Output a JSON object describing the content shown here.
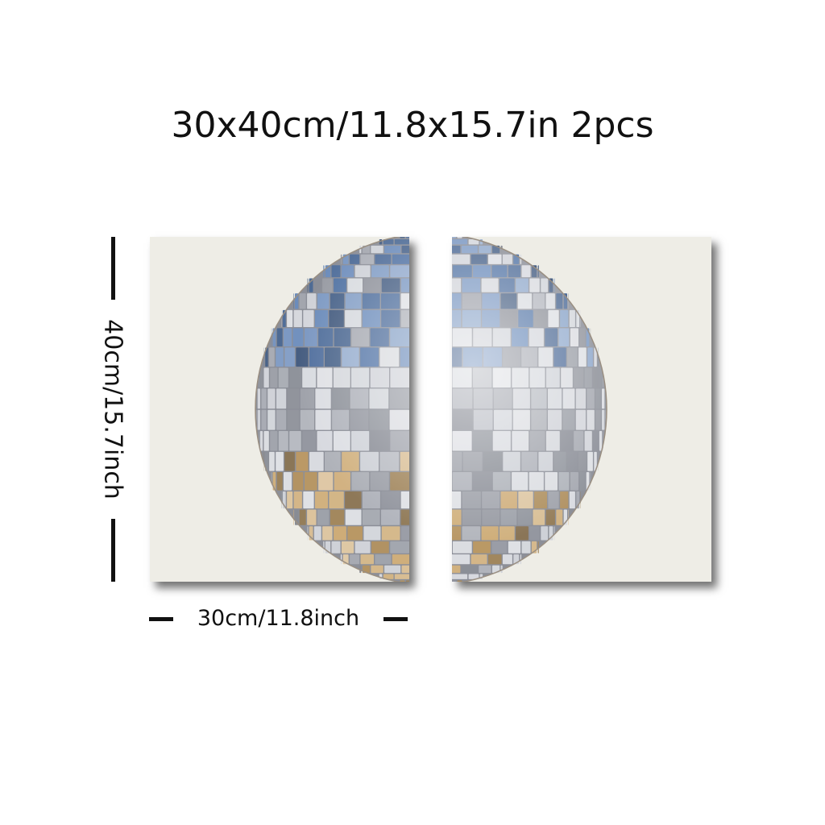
{
  "title": "30x40cm/11.8x15.7in 2pcs",
  "width_label": "30cm/11.8inch",
  "height_label": "40cm/15.7inch",
  "panels": [
    {
      "name": "left-panel",
      "depicts": "disco-ball-left-half-image"
    },
    {
      "name": "right-panel",
      "depicts": "disco-ball-right-half-image"
    }
  ],
  "colors": {
    "background": "#ffffff",
    "canvas": "#eeede6",
    "text": "#111111",
    "ball_blue": "#5b7fb3",
    "ball_silver": "#c9ccd3",
    "ball_gold": "#c9a46a"
  }
}
